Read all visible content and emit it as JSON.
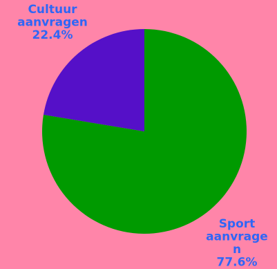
{
  "colors": {
    "background": "#FF85A9",
    "label_text": "#2F66F6"
  },
  "chart_data": {
    "type": "pie",
    "slices": [
      {
        "name_lines": [
          "Sport",
          "aanvrage",
          "n"
        ],
        "value": 77.6,
        "value_label": "77.6%",
        "color": "#009A00"
      },
      {
        "name_lines": [
          "Cultuur",
          "aanvragen"
        ],
        "value": 22.4,
        "value_label": "22.4%",
        "color": "#5510C8"
      }
    ]
  }
}
